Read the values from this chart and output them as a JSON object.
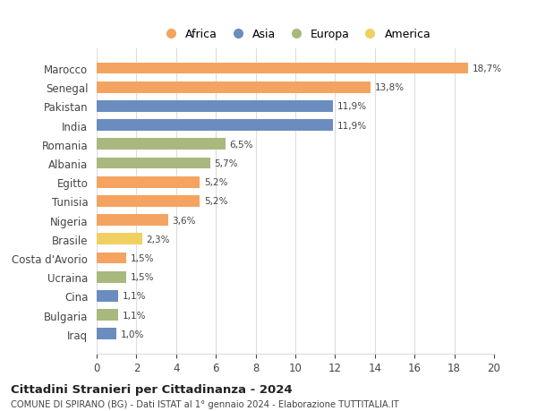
{
  "countries": [
    "Marocco",
    "Senegal",
    "Pakistan",
    "India",
    "Romania",
    "Albania",
    "Egitto",
    "Tunisia",
    "Nigeria",
    "Brasile",
    "Costa d'Avorio",
    "Ucraina",
    "Cina",
    "Bulgaria",
    "Iraq"
  ],
  "values": [
    18.7,
    13.8,
    11.9,
    11.9,
    6.5,
    5.7,
    5.2,
    5.2,
    3.6,
    2.3,
    1.5,
    1.5,
    1.1,
    1.1,
    1.0
  ],
  "labels": [
    "18,7%",
    "13,8%",
    "11,9%",
    "11,9%",
    "6,5%",
    "5,7%",
    "5,2%",
    "5,2%",
    "3,6%",
    "2,3%",
    "1,5%",
    "1,5%",
    "1,1%",
    "1,1%",
    "1,0%"
  ],
  "continents": [
    "Africa",
    "Africa",
    "Asia",
    "Asia",
    "Europa",
    "Europa",
    "Africa",
    "Africa",
    "Africa",
    "America",
    "Africa",
    "Europa",
    "Asia",
    "Europa",
    "Asia"
  ],
  "colors": {
    "Africa": "#F4A460",
    "Asia": "#6B8CBE",
    "Europa": "#A8B87E",
    "America": "#F0D060"
  },
  "legend_order": [
    "Africa",
    "Asia",
    "Europa",
    "America"
  ],
  "title": "Cittadini Stranieri per Cittadinanza - 2024",
  "subtitle": "COMUNE DI SPIRANO (BG) - Dati ISTAT al 1° gennaio 2024 - Elaborazione TUTTITALIA.IT",
  "xlim": [
    0,
    20
  ],
  "xticks": [
    0,
    2,
    4,
    6,
    8,
    10,
    12,
    14,
    16,
    18,
    20
  ],
  "background_color": "#ffffff",
  "grid_color": "#dddddd"
}
